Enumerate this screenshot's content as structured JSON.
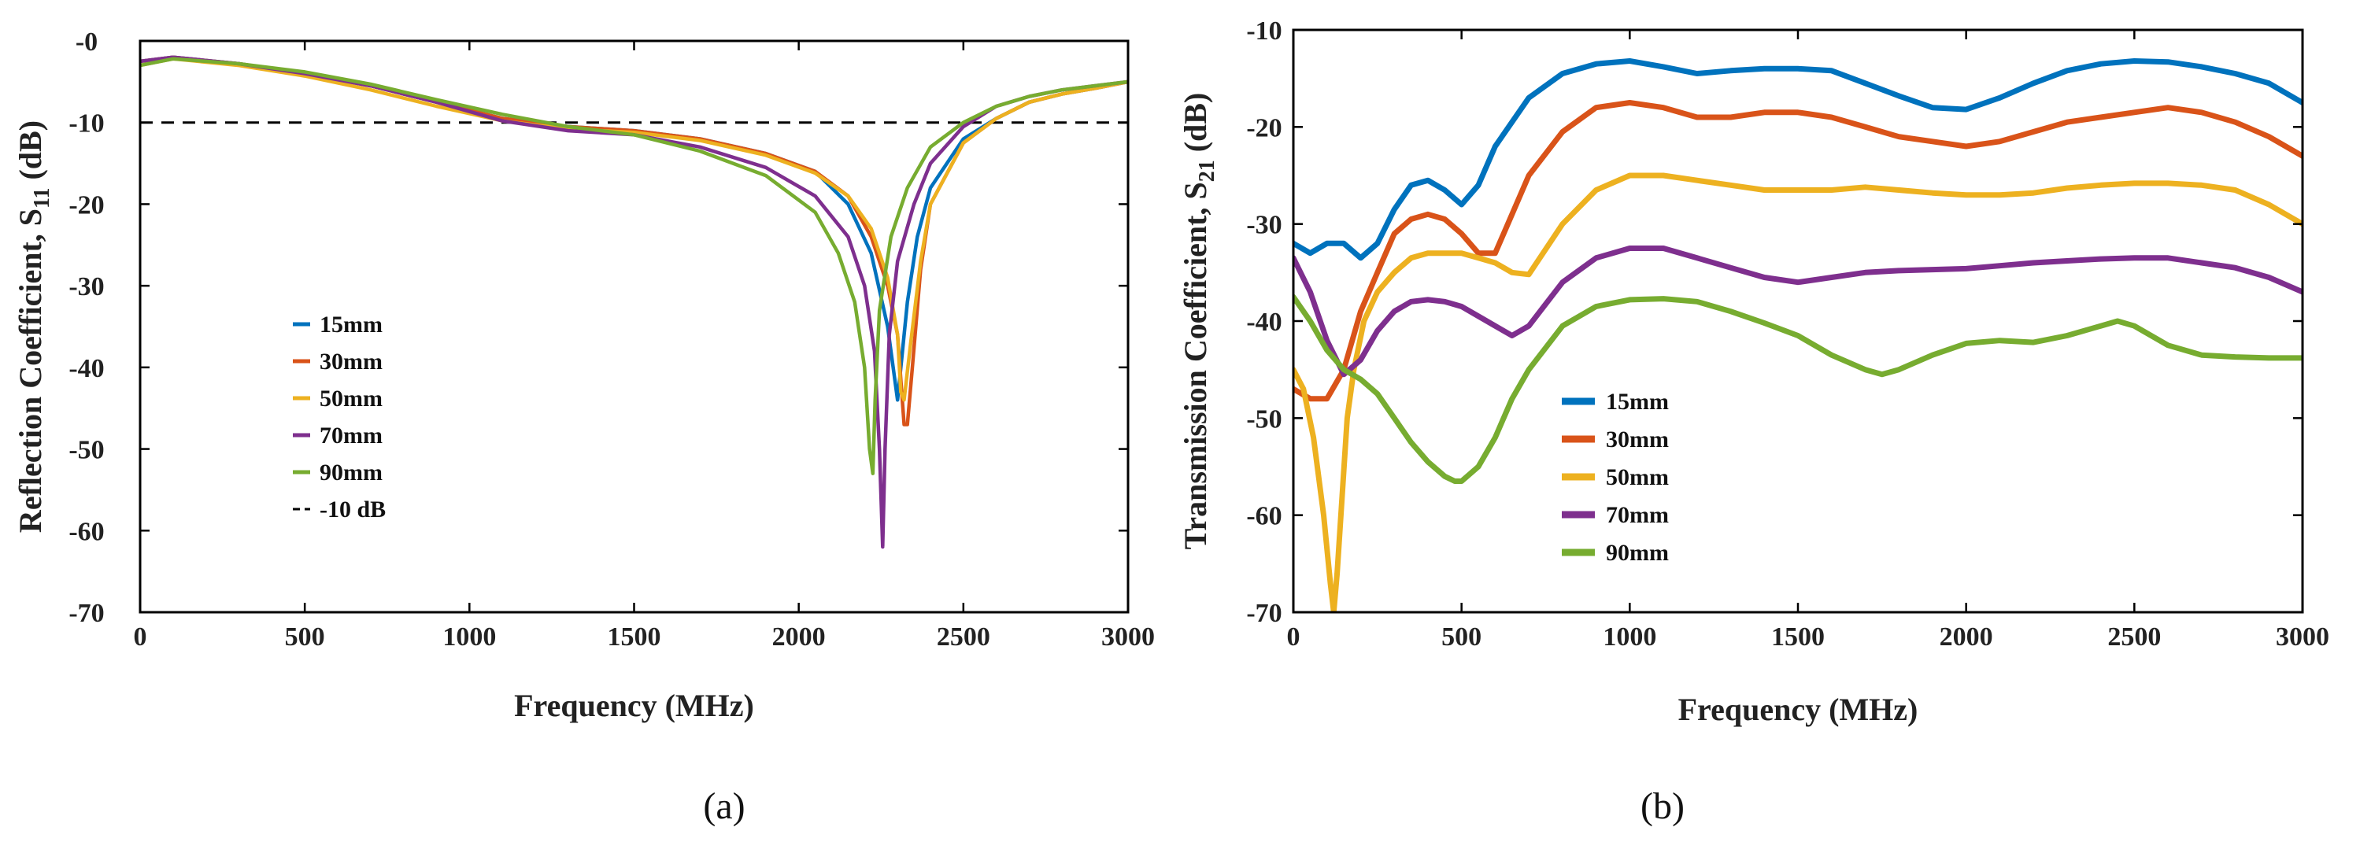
{
  "chart_data": [
    {
      "type": "line",
      "id": "a",
      "panel_label": "(a)",
      "xlabel": "Frequency (MHz)",
      "ylabel_main": "Reflection Coefficient, S",
      "ylabel_sub": "11",
      "ylabel_unit": " (dB)",
      "xlim": [
        0,
        3000
      ],
      "ylim": [
        -70,
        0
      ],
      "xticks": [
        0,
        500,
        1000,
        1500,
        2000,
        2500,
        3000
      ],
      "yticks": [
        -70,
        -60,
        -50,
        -40,
        -30,
        -20,
        -10,
        0
      ],
      "ytick_labels": [
        "-70",
        "-60",
        "-50",
        "-40",
        "-30",
        "-20",
        "-10",
        "-0"
      ],
      "reference_line": {
        "name": "-10 dB",
        "y": -10,
        "color": "#000000",
        "dashed": true
      },
      "series": [
        {
          "name": "15mm",
          "color": "#0072BD",
          "x": [
            0,
            100,
            300,
            500,
            700,
            900,
            1100,
            1300,
            1500,
            1700,
            1900,
            2050,
            2150,
            2220,
            2270,
            2300,
            2330,
            2360,
            2400,
            2500,
            2600,
            2700,
            2800,
            2900,
            3000
          ],
          "y": [
            -2.5,
            -2,
            -2.8,
            -4,
            -5.5,
            -7.5,
            -9.5,
            -10.5,
            -11,
            -12,
            -13.8,
            -16,
            -20,
            -26,
            -35,
            -44,
            -32,
            -24,
            -18,
            -12,
            -9.5,
            -7.5,
            -6.5,
            -5.8,
            -5
          ]
        },
        {
          "name": "30mm",
          "color": "#D95319",
          "x": [
            0,
            100,
            300,
            500,
            700,
            900,
            1100,
            1300,
            1500,
            1700,
            1900,
            2050,
            2150,
            2220,
            2270,
            2300,
            2320,
            2330,
            2345,
            2370,
            2400,
            2500,
            2600,
            2700,
            2800,
            2900,
            3000
          ],
          "y": [
            -2.5,
            -2,
            -2.8,
            -4,
            -5.5,
            -7.5,
            -9.5,
            -10.5,
            -11,
            -12,
            -13.8,
            -16,
            -19,
            -24,
            -30,
            -36,
            -47,
            -47,
            -40,
            -28,
            -20,
            -12.5,
            -9.5,
            -7.5,
            -6.5,
            -5.8,
            -5
          ]
        },
        {
          "name": "50mm",
          "color": "#EDB120",
          "x": [
            0,
            100,
            300,
            500,
            700,
            900,
            1100,
            1300,
            1500,
            1700,
            1900,
            2050,
            2150,
            2220,
            2270,
            2300,
            2310,
            2320,
            2340,
            2370,
            2400,
            2500,
            2600,
            2700,
            2800,
            2900,
            3000
          ],
          "y": [
            -3,
            -2.2,
            -3,
            -4.3,
            -6,
            -8,
            -9.8,
            -10.8,
            -11.2,
            -12.2,
            -14,
            -16.2,
            -19,
            -23,
            -29,
            -36,
            -43,
            -44,
            -37,
            -27,
            -20,
            -12.5,
            -9.5,
            -7.5,
            -6.5,
            -5.8,
            -5
          ]
        },
        {
          "name": "70mm",
          "color": "#7E2F8E",
          "x": [
            0,
            100,
            300,
            500,
            700,
            900,
            1100,
            1300,
            1500,
            1700,
            1900,
            2050,
            2150,
            2200,
            2230,
            2245,
            2255,
            2262,
            2275,
            2300,
            2350,
            2400,
            2500,
            2600,
            2700,
            2800,
            2900,
            3000
          ],
          "y": [
            -2.5,
            -2,
            -2.8,
            -4,
            -5.5,
            -7.5,
            -9.8,
            -11,
            -11.5,
            -13,
            -15.5,
            -19,
            -24,
            -30,
            -38,
            -50,
            -62,
            -50,
            -36,
            -27,
            -20,
            -15,
            -10.5,
            -8,
            -6.8,
            -6,
            -5.5,
            -5
          ]
        },
        {
          "name": "90mm",
          "color": "#77AC30",
          "x": [
            0,
            100,
            300,
            500,
            700,
            900,
            1100,
            1300,
            1500,
            1700,
            1900,
            2050,
            2120,
            2170,
            2200,
            2215,
            2225,
            2232,
            2245,
            2280,
            2330,
            2400,
            2500,
            2600,
            2700,
            2800,
            2900,
            3000
          ],
          "y": [
            -3,
            -2.2,
            -2.8,
            -3.8,
            -5.3,
            -7.2,
            -9,
            -10.5,
            -11.5,
            -13.5,
            -16.5,
            -21,
            -26,
            -32,
            -40,
            -50,
            -53,
            -44,
            -33,
            -24,
            -18,
            -13,
            -10,
            -8,
            -6.8,
            -6,
            -5.5,
            -5
          ]
        }
      ],
      "legend": [
        "15mm",
        "30mm",
        "50mm",
        "70mm",
        "90mm",
        "-10 dB"
      ],
      "legend_position": "left-center"
    },
    {
      "type": "line",
      "id": "b",
      "panel_label": "(b)",
      "xlabel": "Frequency (MHz)",
      "ylabel_main": "Transmission Coefficient, S",
      "ylabel_sub": "21",
      "ylabel_unit": " (dB)",
      "xlim": [
        0,
        3000
      ],
      "ylim": [
        -70,
        -10
      ],
      "xticks": [
        0,
        500,
        1000,
        1500,
        2000,
        2500,
        3000
      ],
      "yticks": [
        -70,
        -60,
        -50,
        -40,
        -30,
        -20,
        -10
      ],
      "ytick_labels": [
        "-70",
        "-60",
        "-50",
        "-40",
        "-30",
        "-20",
        "-10"
      ],
      "series": [
        {
          "name": "15mm",
          "color": "#0072BD",
          "x": [
            0,
            50,
            100,
            150,
            200,
            250,
            300,
            350,
            400,
            450,
            500,
            550,
            600,
            700,
            800,
            900,
            1000,
            1100,
            1200,
            1300,
            1400,
            1500,
            1600,
            1700,
            1800,
            1900,
            2000,
            2100,
            2200,
            2300,
            2400,
            2500,
            2600,
            2700,
            2800,
            2900,
            3000
          ],
          "y": [
            -32,
            -33,
            -32,
            -32,
            -33.5,
            -32,
            -28.5,
            -26,
            -25.5,
            -26.5,
            -28,
            -26,
            -22,
            -17,
            -14.5,
            -13.5,
            -13.2,
            -13.8,
            -14.5,
            -14.2,
            -14,
            -14,
            -14.2,
            -15.5,
            -16.8,
            -18,
            -18.2,
            -17,
            -15.5,
            -14.2,
            -13.5,
            -13.2,
            -13.3,
            -13.8,
            -14.5,
            -15.5,
            -17.5
          ]
        },
        {
          "name": "30mm",
          "color": "#D95319",
          "x": [
            0,
            50,
            100,
            150,
            200,
            250,
            300,
            350,
            400,
            450,
            500,
            550,
            600,
            650,
            700,
            800,
            900,
            1000,
            1100,
            1200,
            1300,
            1400,
            1500,
            1600,
            1700,
            1800,
            1900,
            2000,
            2100,
            2200,
            2300,
            2400,
            2500,
            2600,
            2700,
            2800,
            2900,
            3000
          ],
          "y": [
            -47,
            -48,
            -48,
            -45,
            -39,
            -35,
            -31,
            -29.5,
            -29,
            -29.5,
            -31,
            -33,
            -33,
            -29,
            -25,
            -20.5,
            -18,
            -17.5,
            -18,
            -19,
            -19,
            -18.5,
            -18.5,
            -19,
            -20,
            -21,
            -21.5,
            -22,
            -21.5,
            -20.5,
            -19.5,
            -19,
            -18.5,
            -18,
            -18.5,
            -19.5,
            -21,
            -23
          ]
        },
        {
          "name": "50mm",
          "color": "#EDB120",
          "x": [
            0,
            30,
            60,
            90,
            110,
            120,
            130,
            145,
            160,
            180,
            210,
            250,
            300,
            350,
            400,
            450,
            500,
            550,
            600,
            650,
            700,
            800,
            900,
            1000,
            1100,
            1200,
            1300,
            1400,
            1500,
            1600,
            1700,
            1800,
            1900,
            2000,
            2100,
            2200,
            2300,
            2400,
            2500,
            2600,
            2700,
            2800,
            2900,
            3000
          ],
          "y": [
            -45,
            -47,
            -52,
            -60,
            -67,
            -70,
            -66,
            -58,
            -50,
            -45,
            -40,
            -37,
            -35,
            -33.5,
            -33,
            -33,
            -33,
            -33.5,
            -34,
            -35,
            -35.2,
            -30,
            -26.5,
            -25,
            -25,
            -25.5,
            -26,
            -26.5,
            -26.5,
            -26.5,
            -26.2,
            -26.5,
            -26.8,
            -27,
            -27,
            -26.8,
            -26.3,
            -26,
            -25.8,
            -25.8,
            -26,
            -26.5,
            -28,
            -30
          ]
        },
        {
          "name": "70mm",
          "color": "#7E2F8E",
          "x": [
            0,
            50,
            100,
            150,
            200,
            250,
            300,
            350,
            400,
            450,
            500,
            550,
            600,
            650,
            700,
            800,
            900,
            1000,
            1100,
            1200,
            1300,
            1400,
            1500,
            1600,
            1700,
            1800,
            1900,
            2000,
            2100,
            2200,
            2300,
            2400,
            2500,
            2600,
            2700,
            2800,
            2900,
            3000
          ],
          "y": [
            -33.5,
            -37,
            -42,
            -45.5,
            -44,
            -41,
            -39,
            -38,
            -37.8,
            -38,
            -38.5,
            -39.5,
            -40.5,
            -41.5,
            -40.5,
            -36,
            -33.5,
            -32.5,
            -32.5,
            -33.5,
            -34.5,
            -35.5,
            -36,
            -35.5,
            -35,
            -34.8,
            -34.7,
            -34.6,
            -34.3,
            -34,
            -33.8,
            -33.6,
            -33.5,
            -33.5,
            -34,
            -34.5,
            -35.5,
            -37
          ]
        },
        {
          "name": "90mm",
          "color": "#77AC30",
          "x": [
            0,
            50,
            100,
            150,
            200,
            250,
            300,
            350,
            400,
            450,
            480,
            500,
            550,
            600,
            650,
            700,
            800,
            900,
            1000,
            1100,
            1200,
            1300,
            1400,
            1500,
            1600,
            1700,
            1750,
            1800,
            1900,
            2000,
            2100,
            2200,
            2300,
            2400,
            2450,
            2500,
            2600,
            2700,
            2800,
            2900,
            3000
          ],
          "y": [
            -37.5,
            -40,
            -43,
            -45,
            -46,
            -47.5,
            -50,
            -52.5,
            -54.5,
            -56,
            -56.5,
            -56.5,
            -55,
            -52,
            -48,
            -45,
            -40.5,
            -38.5,
            -37.8,
            -37.7,
            -38,
            -39,
            -40.2,
            -41.5,
            -43.5,
            -45,
            -45.5,
            -45,
            -43.5,
            -42.3,
            -42,
            -42.2,
            -41.5,
            -40.5,
            -40,
            -40.5,
            -42.5,
            -43.5,
            -43.7,
            -43.8,
            -43.8
          ]
        }
      ],
      "legend": [
        "15mm",
        "30mm",
        "50mm",
        "70mm",
        "90mm"
      ],
      "legend_position": "left-center"
    }
  ]
}
